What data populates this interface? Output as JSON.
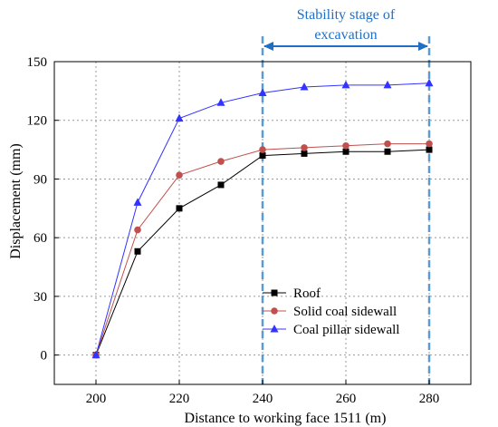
{
  "chart_data": {
    "type": "line",
    "x": [
      200,
      210,
      220,
      230,
      240,
      250,
      260,
      270,
      280
    ],
    "series": [
      {
        "name": "Roof",
        "values": [
          0,
          53,
          75,
          87,
          102,
          103,
          104,
          104,
          105
        ],
        "color": "#000000",
        "marker": "square"
      },
      {
        "name": "Solid coal sidewall",
        "values": [
          0,
          64,
          92,
          99,
          105,
          106,
          107,
          108,
          108
        ],
        "color": "#c0504d",
        "marker": "circle"
      },
      {
        "name": "Coal pillar sidewall",
        "values": [
          0,
          78,
          121,
          129,
          134,
          137,
          138,
          138,
          139
        ],
        "color": "#3333ff",
        "marker": "triangle"
      }
    ],
    "xlabel": "Distance to working face 1511 (m)",
    "ylabel": "Displacement (mm)",
    "xlim": [
      190,
      290
    ],
    "ylim": [
      -15,
      150
    ],
    "xticks": [
      200,
      220,
      240,
      260,
      280
    ],
    "yticks": [
      0,
      30,
      60,
      90,
      120,
      150
    ],
    "grid": true,
    "legend_position": "bottom-right",
    "annotation": {
      "line1": "Stability stage  of",
      "line2": "excavation",
      "x_start": 240,
      "x_end": 280,
      "color": "#1f6fc5",
      "dashed_color": "#5b9bd5"
    }
  }
}
